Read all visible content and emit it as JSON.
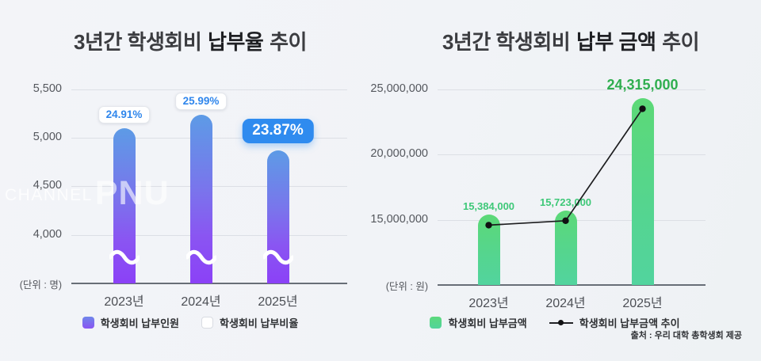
{
  "watermark": {
    "part1": "CHANNEL",
    "part2": "PNU"
  },
  "source": "출처 : 우리 대학 총학생회 제공",
  "colors": {
    "background": "#f2f4f7",
    "bar_purple_top": "#5d9be6",
    "bar_purple_bottom": "#8b41f7",
    "bar_green_top": "#5cd977",
    "bar_green_bottom": "#52d49e",
    "rate_blue": "#2f86ec",
    "highlight_box_blue": "#2f8bef",
    "amount_green": "#3ec878",
    "amount_green_highlight": "#2fae4f",
    "trend_line": "#1d1d1f"
  },
  "chart_data": [
    {
      "type": "bar",
      "title": {
        "pre": "3년간 학생회비",
        "bold": "납부율",
        "post": "추이"
      },
      "unit_label": "(단위 : 명)",
      "categories": [
        "2023년",
        "2024년",
        "2025년"
      ],
      "y_ticks": [
        {
          "value": 5500,
          "label": "5,500"
        },
        {
          "value": 5000,
          "label": "5,000"
        },
        {
          "value": 4500,
          "label": "4,500"
        },
        {
          "value": 4000,
          "label": "4,000"
        }
      ],
      "ylim": [
        3500,
        5560
      ],
      "axis_break": true,
      "grid": true,
      "series": [
        {
          "name": "학생회비 납부인원",
          "kind": "bar",
          "values": [
            5100,
            5240,
            4870
          ],
          "estimated": true
        },
        {
          "name": "학생회비 납부비율",
          "kind": "percent-labels",
          "values": [
            24.91,
            25.99,
            23.87
          ],
          "labels": [
            "24.91%",
            "25.99%",
            "23.87%"
          ],
          "highlight_index": 2
        }
      ],
      "legend": [
        {
          "label": "학생회비 납부인원",
          "swatch": "purple-gradient"
        },
        {
          "label": "학생회비 납부비율",
          "swatch": "white"
        }
      ]
    },
    {
      "type": "bar+line",
      "title": {
        "pre": "3년간 학생회비",
        "bold": "납부 금액",
        "post": "추이"
      },
      "unit_label": "(단위 : 원)",
      "categories": [
        "2023년",
        "2024년",
        "2025년"
      ],
      "y_ticks": [
        {
          "value": 25000000,
          "label": "25,000,000"
        },
        {
          "value": 20000000,
          "label": "20,000,000"
        },
        {
          "value": 15000000,
          "label": "15,000,000"
        }
      ],
      "ylim": [
        10000000,
        25300000
      ],
      "axis_break": false,
      "grid": true,
      "series": [
        {
          "name": "학생회비 납부금액",
          "kind": "bar",
          "values": [
            15384000,
            15723000,
            24315000
          ],
          "labels": [
            "15,384,000",
            "15,723,000",
            "24,315,000"
          ],
          "highlight_index": 2
        },
        {
          "name": "학생회비 납부금액 추이",
          "kind": "line",
          "values": [
            15384000,
            15723000,
            24315000
          ]
        }
      ],
      "legend": [
        {
          "label": "학생회비 납부금액",
          "swatch": "green-gradient"
        },
        {
          "label": "학생회비 납부금액 추이",
          "swatch": "line-dot"
        }
      ]
    }
  ]
}
